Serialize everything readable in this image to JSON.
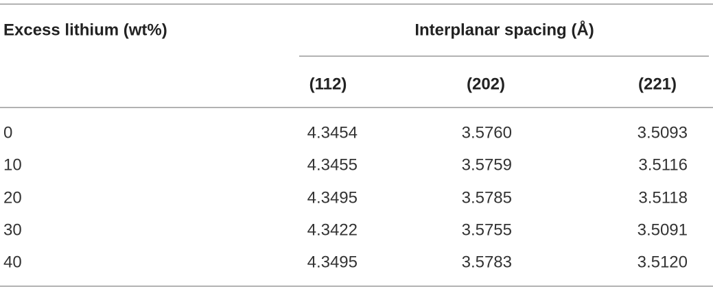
{
  "header": {
    "row_label": "Excess lithium (wt%)",
    "group": "Interplanar spacing (Å)",
    "columns": [
      "(112)",
      "(202)",
      "(221)"
    ]
  },
  "table": {
    "rows": [
      [
        "0",
        "4.3454",
        "3.5760",
        "3.5093"
      ],
      [
        "10",
        "4.3455",
        "3.5759",
        "3.5116"
      ],
      [
        "20",
        "4.3495",
        "3.5785",
        "3.5118"
      ],
      [
        "30",
        "4.3422",
        "3.5755",
        "3.5091"
      ],
      [
        "40",
        "4.3495",
        "3.5783",
        "3.5120"
      ]
    ]
  }
}
